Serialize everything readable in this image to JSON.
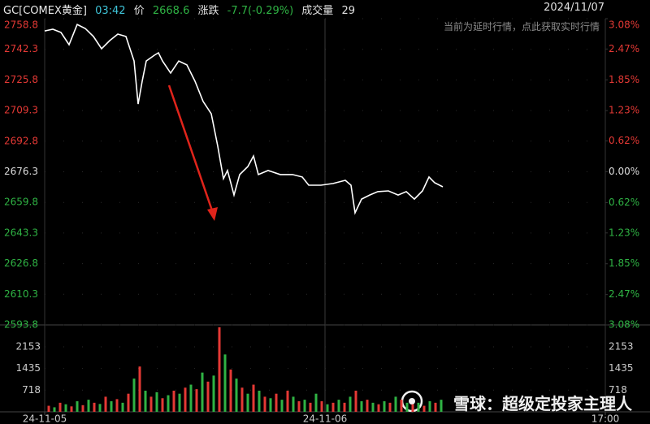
{
  "header": {
    "symbol": "GC[COMEX黄金]",
    "time": "03:42",
    "price_label": "价",
    "price": "2668.6",
    "change_label": "涨跌",
    "change": "-7.7(-0.29%)",
    "volume_label": "成交量",
    "volume": "29",
    "date": "2024/11/07"
  },
  "notice": "当前为延时行情，点此获取实时行情",
  "watermark": "雪球：超级定投家主理人",
  "chart_data": [
    {
      "type": "line",
      "color": "#ffffff",
      "up_color": "#e53935",
      "down_color": "#2fb344",
      "grid": true,
      "x": [
        0,
        10,
        20,
        30,
        40,
        50,
        60,
        70,
        80,
        90,
        100,
        110,
        115,
        120,
        125,
        135,
        140,
        145,
        155,
        165,
        175,
        185,
        195,
        205,
        213,
        220,
        225,
        233,
        240,
        250,
        257,
        263,
        275,
        290,
        305,
        317,
        325,
        340,
        355,
        370,
        377,
        382,
        390,
        400,
        410,
        423,
        435,
        445,
        455,
        465,
        473,
        480,
        490
      ],
      "values": [
        2752.2,
        2753.1,
        2751.4,
        2744.8,
        2755.7,
        2753.5,
        2749.2,
        2742.6,
        2747.0,
        2750.5,
        2749.2,
        2736.0,
        2712.8,
        2725.1,
        2736.0,
        2739.1,
        2740.4,
        2736.0,
        2729.5,
        2736.0,
        2733.9,
        2725.1,
        2714.2,
        2707.6,
        2690.1,
        2672.6,
        2677.0,
        2663.8,
        2674.8,
        2679.1,
        2684.8,
        2674.8,
        2677.0,
        2674.8,
        2674.8,
        2673.5,
        2669.1,
        2669.1,
        2670.0,
        2671.7,
        2669.1,
        2654.2,
        2661.6,
        2663.8,
        2665.6,
        2666.0,
        2663.8,
        2665.6,
        2661.6,
        2666.0,
        2673.5,
        2670.4,
        2668.2
      ],
      "xlim": [
        0,
        690
      ],
      "xticks": [
        {
          "value": 0,
          "label": "24-11-05"
        },
        {
          "value": 345,
          "label": "24-11-06"
        },
        {
          "value": 690,
          "label": "17:00"
        }
      ],
      "ylim": [
        2593.8,
        2758.8
      ],
      "yticks": [
        2758.8,
        2742.3,
        2725.8,
        2709.3,
        2692.8,
        2676.3,
        2659.8,
        2643.3,
        2626.8,
        2610.3,
        2593.8
      ],
      "y2lim": [
        -3.08,
        3.08
      ],
      "y2ticks": [
        {
          "value": 3.08,
          "label": "3.08%"
        },
        {
          "value": 2.47,
          "label": "2.47%"
        },
        {
          "value": 1.85,
          "label": "1.85%"
        },
        {
          "value": 1.23,
          "label": "1.23%"
        },
        {
          "value": 0.62,
          "label": "0.62%"
        },
        {
          "value": 0,
          "label": "0.00%"
        },
        {
          "value": -0.62,
          "label": "0.62%"
        },
        {
          "value": -1.23,
          "label": "1.23%"
        },
        {
          "value": -1.85,
          "label": "1.85%"
        },
        {
          "value": -2.47,
          "label": "2.47%"
        },
        {
          "value": -3.08,
          "label": "3.08%"
        }
      ]
    },
    {
      "type": "bar",
      "xlim": [
        0,
        690
      ],
      "ylim": [
        0,
        2878
      ],
      "yticks": [
        718,
        1435,
        2153
      ],
      "x": [
        5,
        12,
        19,
        26,
        33,
        40,
        47,
        54,
        61,
        68,
        75,
        82,
        89,
        96,
        103,
        110,
        117,
        124,
        131,
        138,
        145,
        152,
        159,
        166,
        173,
        180,
        187,
        194,
        201,
        208,
        215,
        222,
        229,
        236,
        243,
        250,
        257,
        264,
        271,
        278,
        285,
        292,
        299,
        306,
        313,
        320,
        327,
        334,
        341,
        348,
        355,
        362,
        369,
        376,
        383,
        390,
        397,
        404,
        411,
        418,
        425,
        432,
        439,
        446,
        453,
        460,
        467,
        474,
        481,
        488
      ],
      "series": [
        {
          "color": "#e53935",
          "values": [
            200,
            null,
            300,
            null,
            180,
            null,
            220,
            null,
            300,
            null,
            500,
            null,
            420,
            null,
            600,
            null,
            1500,
            null,
            500,
            null,
            450,
            null,
            700,
            null,
            800,
            null,
            750,
            null,
            1000,
            null,
            2800,
            null,
            1400,
            null,
            800,
            null,
            900,
            null,
            500,
            null,
            600,
            null,
            700,
            null,
            350,
            null,
            300,
            null,
            350,
            null,
            300,
            null,
            300,
            null,
            700,
            null,
            400,
            null,
            250,
            null,
            300,
            null,
            400,
            null,
            250,
            null,
            200,
            null,
            300,
            null
          ]
        },
        {
          "color": "#2fb344",
          "values": [
            null,
            150,
            null,
            250,
            null,
            350,
            null,
            400,
            null,
            260,
            null,
            350,
            null,
            300,
            null,
            1100,
            null,
            700,
            null,
            650,
            null,
            550,
            null,
            600,
            null,
            900,
            null,
            1300,
            null,
            1200,
            null,
            1900,
            null,
            1100,
            null,
            600,
            null,
            700,
            null,
            450,
            null,
            400,
            null,
            500,
            null,
            400,
            null,
            600,
            null,
            250,
            null,
            400,
            null,
            500,
            null,
            350,
            null,
            300,
            null,
            350,
            null,
            500,
            null,
            300,
            null,
            300,
            null,
            350,
            null,
            400
          ]
        }
      ]
    }
  ]
}
